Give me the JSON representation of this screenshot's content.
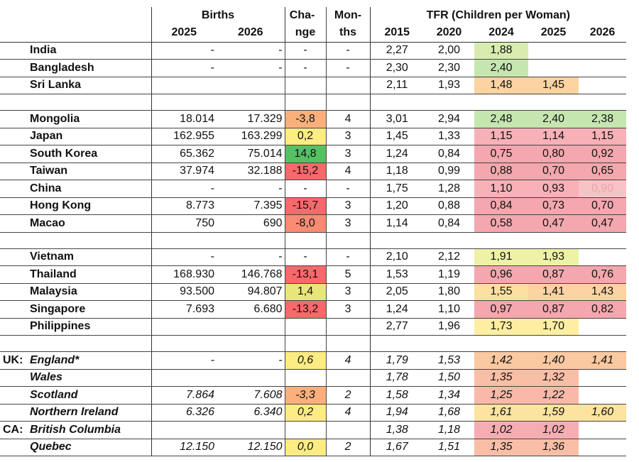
{
  "header": {
    "births": "Births",
    "change": "Cha-  ",
    "change2": "nge",
    "months": "Mon-",
    "months2": "ths",
    "tfr": "TFR (Children per Woman)",
    "years_births": [
      "2025",
      "2026"
    ],
    "years_tfr": [
      "2015",
      "2020",
      "2024",
      "2025",
      "2026"
    ]
  },
  "colors": {
    "light_green": "#c6e6b0",
    "green": "#56c163",
    "yellow": "#fdeb84",
    "yellow_green": "#e8f0a2",
    "peach": "#fcd6a1",
    "orange": "#fbb07c",
    "red": "#f8696b",
    "pink": "#f4a7ae",
    "light_pink": "#f8c3c6"
  },
  "groups": [
    {
      "rows": [
        {
          "prefix": "",
          "name": "India",
          "b2025": "-",
          "b2026": "-",
          "change": "-",
          "months": "-",
          "t2015": "2,27",
          "t2020": "2,00",
          "t2024": "1,88",
          "t2025": "",
          "t2026": "",
          "c_change": "",
          "c2024": "#d8ecb0",
          "c2025": "",
          "c2026": ""
        },
        {
          "prefix": "",
          "name": "Bangladesh",
          "b2025": "-",
          "b2026": "-",
          "change": "-",
          "months": "-",
          "t2015": "2,30",
          "t2020": "2,30",
          "t2024": "2,40",
          "t2025": "",
          "t2026": "",
          "c_change": "",
          "c2024": "#c6e6b0",
          "c2025": "",
          "c2026": ""
        },
        {
          "prefix": "",
          "name": "Sri Lanka",
          "b2025": "",
          "b2026": "",
          "change": "",
          "months": "",
          "t2015": "2,11",
          "t2020": "1,93",
          "t2024": "1,48",
          "t2025": "1,45",
          "t2026": "",
          "c_change": "",
          "c2024": "#fcd3a1",
          "c2025": "#fcd3a1",
          "c2026": ""
        }
      ]
    },
    {
      "rows": [
        {
          "prefix": "",
          "name": "Mongolia",
          "b2025": "18.014",
          "b2026": "17.329",
          "change": "-3,8",
          "months": "4",
          "t2015": "3,01",
          "t2020": "2,94",
          "t2024": "2,48",
          "t2025": "2,40",
          "t2026": "2,38",
          "c_change": "#fbb07c",
          "c2024": "#c6e6b0",
          "c2025": "#c6e6b0",
          "c2026": "#c6e6b0"
        },
        {
          "prefix": "",
          "name": "Japan",
          "b2025": "162.955",
          "b2026": "163.299",
          "change": "0,2",
          "months": "3",
          "t2015": "1,45",
          "t2020": "1,33",
          "t2024": "1,15",
          "t2025": "1,14",
          "t2026": "1,15",
          "c_change": "#fdeb84",
          "c2024": "#f7b1b7",
          "c2025": "#f7b1b7",
          "c2026": "#f7b1b7"
        },
        {
          "prefix": "",
          "name": "South Korea",
          "b2025": "65.362",
          "b2026": "75.014",
          "change": "14,8",
          "months": "3",
          "t2015": "1,24",
          "t2020": "0,84",
          "t2024": "0,75",
          "t2025": "0,80",
          "t2026": "0,92",
          "c_change": "#56c163",
          "c2024": "#f4a7ae",
          "c2025": "#f4a7ae",
          "c2026": "#f4a7ae"
        },
        {
          "prefix": "",
          "name": "Taiwan",
          "b2025": "37.974",
          "b2026": "32.188",
          "change": "-15,2",
          "months": "4",
          "t2015": "1,18",
          "t2020": "0,99",
          "t2024": "0,88",
          "t2025": "0,70",
          "t2026": "0,65",
          "c_change": "#f8696b",
          "c2024": "#f4a7ae",
          "c2025": "#f4a7ae",
          "c2026": "#f4a7ae"
        },
        {
          "prefix": "",
          "name": "China",
          "b2025": "-",
          "b2026": "-",
          "change": "-",
          "months": "-",
          "t2015": "1,75",
          "t2020": "1,28",
          "t2024": "1,10",
          "t2025": "0,93",
          "t2026": "0,90",
          "c_change": "",
          "c2024": "#f7b1b7",
          "c2025": "#f7b1b7",
          "c2026": "#f8c3c6"
        },
        {
          "prefix": "",
          "name": "Hong Kong",
          "b2025": "8.773",
          "b2026": "7.395",
          "change": "-15,7",
          "months": "3",
          "t2015": "1,20",
          "t2020": "0,88",
          "t2024": "0,84",
          "t2025": "0,73",
          "t2026": "0,70",
          "c_change": "#f8696b",
          "c2024": "#f4a7ae",
          "c2025": "#f4a7ae",
          "c2026": "#f4a7ae"
        },
        {
          "prefix": "",
          "name": "Macao",
          "b2025": "750",
          "b2026": "690",
          "change": "-8,0",
          "months": "3",
          "t2015": "1,14",
          "t2020": "0,84",
          "t2024": "0,58",
          "t2025": "0,47",
          "t2026": "0,47",
          "c_change": "#f98a73",
          "c2024": "#f4a7ae",
          "c2025": "#f4a7ae",
          "c2026": "#f4a7ae"
        }
      ]
    },
    {
      "rows": [
        {
          "prefix": "",
          "name": "Vietnam",
          "b2025": "-",
          "b2026": "-",
          "change": "-",
          "months": "-",
          "t2015": "2,10",
          "t2020": "2,12",
          "t2024": "1,91",
          "t2025": "1,93",
          "t2026": "",
          "c_change": "",
          "c2024": "#eef2a6",
          "c2025": "#eef2a6",
          "c2026": ""
        },
        {
          "prefix": "",
          "name": "Thailand",
          "b2025": "168.930",
          "b2026": "146.768",
          "change": "-13,1",
          "months": "5",
          "t2015": "1,53",
          "t2020": "1,19",
          "t2024": "0,96",
          "t2025": "0,87",
          "t2026": "0,76",
          "c_change": "#f8696b",
          "c2024": "#f4a7ae",
          "c2025": "#f4a7ae",
          "c2026": "#f4a7ae"
        },
        {
          "prefix": "",
          "name": "Malaysia",
          "b2025": "93.500",
          "b2026": "94.807",
          "change": "1,4",
          "months": "3",
          "t2015": "2,05",
          "t2020": "1,80",
          "t2024": "1,55",
          "t2025": "1,41",
          "t2026": "1,43",
          "c_change": "#e8e67a",
          "c2024": "#fde0a0",
          "c2025": "#fcd3a1",
          "c2026": "#fcd3a1"
        },
        {
          "prefix": "",
          "name": "Singapore",
          "b2025": "7.693",
          "b2026": "6.680",
          "change": "-13,2",
          "months": "3",
          "t2015": "1,24",
          "t2020": "1,10",
          "t2024": "0,97",
          "t2025": "0,87",
          "t2026": "0,82",
          "c_change": "#f8696b",
          "c2024": "#f4a7ae",
          "c2025": "#f4a7ae",
          "c2026": "#f4a7ae"
        },
        {
          "prefix": "",
          "name": "Philippines",
          "b2025": "",
          "b2026": "",
          "change": "",
          "months": "",
          "t2015": "2,77",
          "t2020": "1,96",
          "t2024": "1,73",
          "t2025": "1,70",
          "t2026": "",
          "c_change": "",
          "c2024": "#fdeea2",
          "c2025": "#fdeea2",
          "c2026": ""
        }
      ]
    },
    {
      "italic": true,
      "rows": [
        {
          "prefix": "UK:",
          "name": "England*",
          "b2025": "-",
          "b2026": "-",
          "change": "0,6",
          "months": "4",
          "t2015": "1,79",
          "t2020": "1,53",
          "t2024": "1,42",
          "t2025": "1,40",
          "t2026": "1,41",
          "c_change": "#fdeb84",
          "c2024": "#fbc9a1",
          "c2025": "#fbc9a1",
          "c2026": "#fbc9a1"
        },
        {
          "prefix": "",
          "name": "Wales",
          "b2025": "",
          "b2026": "",
          "change": "",
          "months": "",
          "t2015": "1,78",
          "t2020": "1,50",
          "t2024": "1,35",
          "t2025": "1,32",
          "t2026": "",
          "c_change": "",
          "c2024": "#f9bfa6",
          "c2025": "#f9bfa6",
          "c2026": ""
        },
        {
          "prefix": "",
          "name": "Scotland",
          "b2025": "7.864",
          "b2026": "7.608",
          "change": "-3,3",
          "months": "2",
          "t2015": "1,58",
          "t2020": "1,34",
          "t2024": "1,25",
          "t2025": "1,22",
          "t2026": "",
          "c_change": "#fbb07c",
          "c2024": "#f8b9a9",
          "c2025": "#f8b9a9",
          "c2026": ""
        },
        {
          "prefix": "",
          "name": "Northern Ireland",
          "b2025": "6.326",
          "b2026": "6.340",
          "change": "0,2",
          "months": "4",
          "t2015": "1,94",
          "t2020": "1,68",
          "t2024": "1,61",
          "t2025": "1,59",
          "t2026": "1,60",
          "c_change": "#fdeb84",
          "c2024": "#fde3a0",
          "c2025": "#fde3a0",
          "c2026": "#fde3a0"
        },
        {
          "prefix": "CA:",
          "name": "British Columbia",
          "b2025": "",
          "b2026": "",
          "change": "",
          "months": "",
          "t2015": "1,38",
          "t2020": "1,18",
          "t2024": "1,02",
          "t2025": "1,02",
          "t2026": "",
          "c_change": "",
          "c2024": "#f6adb2",
          "c2025": "#f6adb2",
          "c2026": ""
        },
        {
          "prefix": "",
          "name": "Quebec",
          "b2025": "12.150",
          "b2026": "12.150",
          "change": "0,0",
          "months": "2",
          "t2015": "1,67",
          "t2020": "1,51",
          "t2024": "1,35",
          "t2025": "1,36",
          "t2026": "",
          "c_change": "#fdeb84",
          "c2024": "#f9bfa6",
          "c2025": "#f9bfa6",
          "c2026": ""
        }
      ]
    }
  ]
}
